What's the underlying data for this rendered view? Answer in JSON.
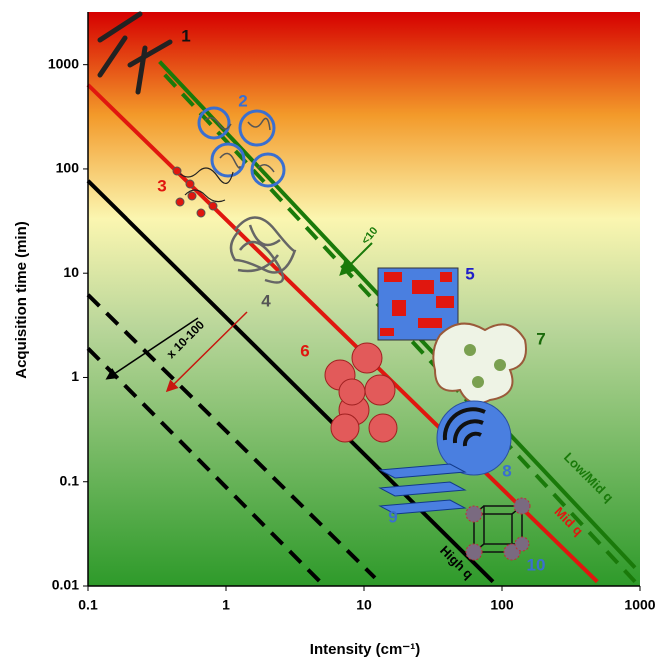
{
  "chart_data": {
    "type": "line",
    "xlabel": "Intensity (cm⁻¹)",
    "ylabel": "Acquisition time (min)",
    "xscale": "log",
    "yscale": "log",
    "xlim": [
      0.1,
      1000
    ],
    "ylim": [
      0.01,
      3200
    ],
    "xticks": [
      0.1,
      1,
      10,
      100,
      1000
    ],
    "yticks": [
      0.01,
      0.1,
      1,
      10,
      100,
      1000
    ],
    "series": [
      {
        "name": "Low/Mid q",
        "color": "#1a7a0a",
        "dashed": false,
        "x": [
          0.33,
          920
        ],
        "values": [
          1070,
          0.015
        ]
      },
      {
        "color": "#1a7a0a",
        "dashed": true,
        "x": [
          0.36,
          920
        ],
        "values": [
          800,
          0.011
        ]
      },
      {
        "name": "Mid q",
        "color": "#e0170f",
        "dashed": false,
        "x": [
          0.1,
          490
        ],
        "values": [
          640,
          0.011
        ]
      },
      {
        "name": "High q",
        "color": "#000000",
        "dashed": false,
        "x": [
          0.1,
          86
        ],
        "values": [
          77,
          0.011
        ]
      },
      {
        "color": "#000000",
        "dashed": true,
        "x": [
          0.1,
          12
        ],
        "values": [
          6.2,
          0.012
        ]
      },
      {
        "color": "#000000",
        "dashed": true,
        "x": [
          0.1,
          4.8
        ],
        "values": [
          1.9,
          0.011
        ]
      }
    ],
    "annotations": [
      {
        "text": "1",
        "color": "#111111"
      },
      {
        "text": "2",
        "color": "#3a6fd0"
      },
      {
        "text": "3",
        "color": "#e0170f"
      },
      {
        "text": "4",
        "color": "#555555"
      },
      {
        "text": "5",
        "color": "#2020c8"
      },
      {
        "text": "6",
        "color": "#e0170f"
      },
      {
        "text": "7",
        "color": "#1a6a0a"
      },
      {
        "text": "8",
        "color": "#3a6fd0"
      },
      {
        "text": "9",
        "color": "#3a6fd0"
      },
      {
        "text": "10",
        "color": "#3a6fd0"
      },
      {
        "text": "<10",
        "color": "#1a7a0a"
      },
      {
        "text": "x 10-100",
        "color": "#000000"
      }
    ]
  }
}
